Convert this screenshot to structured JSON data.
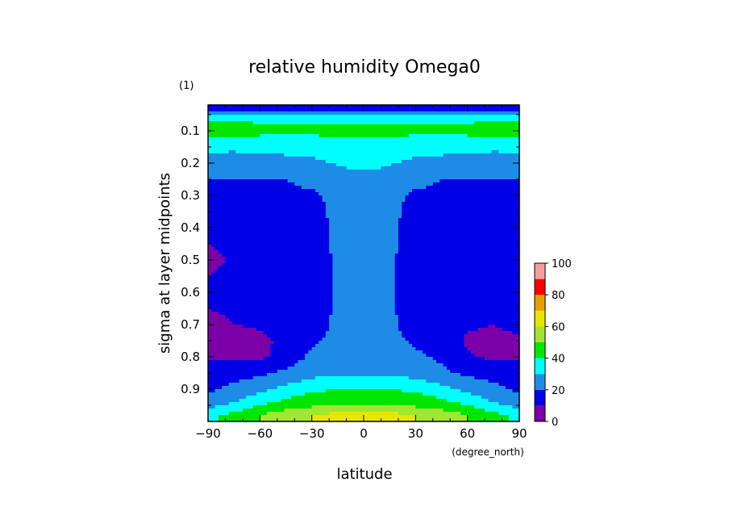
{
  "chart_data": {
    "type": "heatmap",
    "title": "relative humidity Omega0",
    "units_label": "(1)",
    "xlabel": "latitude",
    "x_units": "(degree_north)",
    "ylabel": "sigma at layer midpoints",
    "xlim": [
      -90,
      90
    ],
    "ylim": [
      1.0,
      0.02
    ],
    "x_ticks": [
      "-90",
      "-60",
      "-30",
      "0",
      "30",
      "60",
      "90"
    ],
    "y_ticks": [
      "0.1",
      "0.2",
      "0.3",
      "0.4",
      "0.5",
      "0.6",
      "0.7",
      "0.8",
      "0.9"
    ],
    "colorbar": {
      "ticks": [
        "0",
        "20",
        "40",
        "60",
        "80",
        "100"
      ],
      "levels": [
        0,
        10,
        20,
        30,
        40,
        50,
        60,
        70,
        80,
        90,
        100
      ],
      "colors": [
        "#7b00a8",
        "#0000e6",
        "#1e8ce6",
        "#00ffff",
        "#00e600",
        "#a0e632",
        "#e6e600",
        "#e6a000",
        "#ff0000",
        "#f5a0a0"
      ]
    },
    "x": [
      -90,
      -75,
      -60,
      -45,
      -30,
      -15,
      0,
      15,
      30,
      45,
      60,
      75,
      90
    ],
    "y": [
      0.03,
      0.06,
      0.1,
      0.15,
      0.2,
      0.25,
      0.3,
      0.4,
      0.5,
      0.6,
      0.7,
      0.75,
      0.8,
      0.85,
      0.9,
      0.95,
      0.98
    ],
    "values": [
      [
        12,
        12,
        12,
        12,
        12,
        12,
        14,
        12,
        12,
        12,
        12,
        12,
        12
      ],
      [
        38,
        38,
        38,
        38,
        38,
        38,
        38,
        38,
        38,
        38,
        38,
        38,
        38
      ],
      [
        45,
        44,
        43,
        42,
        42,
        42,
        42,
        42,
        42,
        42,
        43,
        44,
        45
      ],
      [
        33,
        32,
        33,
        34,
        35,
        36,
        36,
        36,
        35,
        34,
        33,
        32,
        33
      ],
      [
        25,
        25,
        26,
        26,
        27,
        31,
        33,
        31,
        27,
        26,
        26,
        25,
        25
      ],
      [
        20,
        20,
        20,
        20,
        23,
        25,
        27,
        25,
        23,
        20,
        20,
        20,
        20
      ],
      [
        18,
        18,
        18,
        18,
        18,
        23,
        25,
        23,
        18,
        18,
        18,
        18,
        18
      ],
      [
        12,
        13,
        14,
        15,
        16,
        22,
        23,
        22,
        16,
        15,
        14,
        13,
        12
      ],
      [
        8,
        11,
        13,
        14,
        14,
        22,
        22,
        22,
        14,
        14,
        13,
        12,
        12
      ],
      [
        12,
        12,
        12,
        12,
        13,
        22,
        22,
        22,
        13,
        12,
        12,
        12,
        12
      ],
      [
        8,
        10,
        11,
        13,
        15,
        22,
        22,
        22,
        15,
        13,
        11,
        10,
        12
      ],
      [
        7,
        7,
        8,
        12,
        18,
        23,
        23,
        23,
        18,
        14,
        9,
        8,
        9
      ],
      [
        8,
        8,
        8,
        14,
        22,
        25,
        25,
        25,
        22,
        18,
        11,
        8,
        9
      ],
      [
        16,
        17,
        18,
        22,
        26,
        28,
        28,
        28,
        26,
        22,
        18,
        17,
        16
      ],
      [
        18,
        22,
        27,
        33,
        38,
        40,
        40,
        40,
        38,
        33,
        27,
        22,
        18
      ],
      [
        27,
        32,
        40,
        45,
        48,
        50,
        50,
        50,
        48,
        45,
        40,
        32,
        27
      ],
      [
        38,
        43,
        50,
        55,
        60,
        63,
        63,
        63,
        60,
        55,
        50,
        43,
        38
      ]
    ]
  }
}
